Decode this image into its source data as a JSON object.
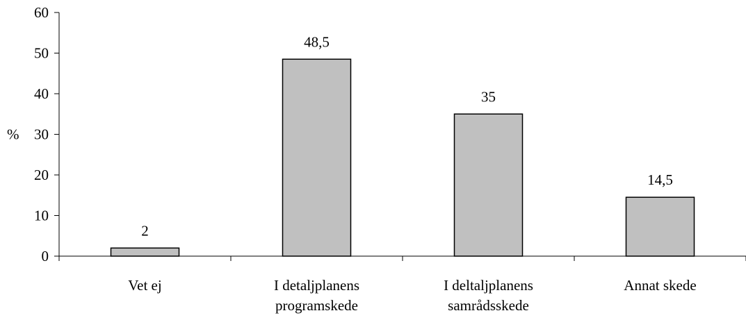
{
  "chart_data": {
    "type": "bar",
    "categories": [
      [
        "Vet ej"
      ],
      [
        "I detaljplanens",
        "programskede"
      ],
      [
        "I deltaljplanens",
        "samrådsskede"
      ],
      [
        "Annat skede"
      ]
    ],
    "values": [
      2,
      48.5,
      35,
      14.5
    ],
    "data_labels": [
      "2",
      "48,5",
      "35",
      "14,5"
    ],
    "ylabel": "%",
    "ylim": [
      0,
      60
    ],
    "yticks": [
      0,
      10,
      20,
      30,
      40,
      50,
      60
    ],
    "grid": false,
    "legend": "none",
    "bar_color": "#c0c0c0",
    "bar_stroke": "#000000"
  }
}
